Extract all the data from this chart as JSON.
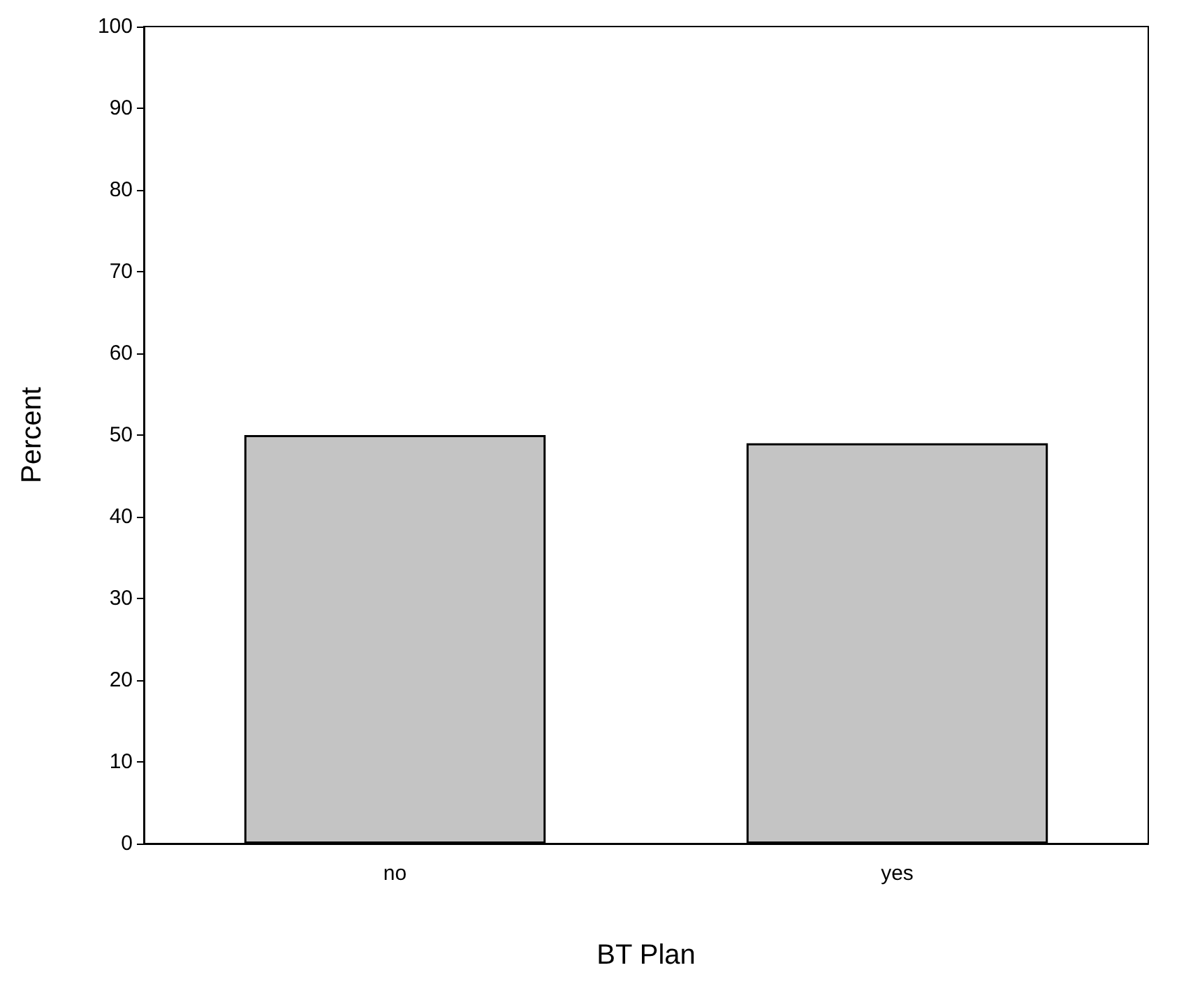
{
  "chart_data": {
    "type": "bar",
    "xlabel": "BT Plan",
    "ylabel": "Percent",
    "categories": [
      "no",
      "yes"
    ],
    "values": [
      50,
      49
    ],
    "color": "#c4c4c4",
    "ylim": [
      0,
      100
    ],
    "yticks": [
      0,
      10,
      20,
      30,
      40,
      50,
      60,
      70,
      80,
      90,
      100
    ],
    "grid": false
  }
}
